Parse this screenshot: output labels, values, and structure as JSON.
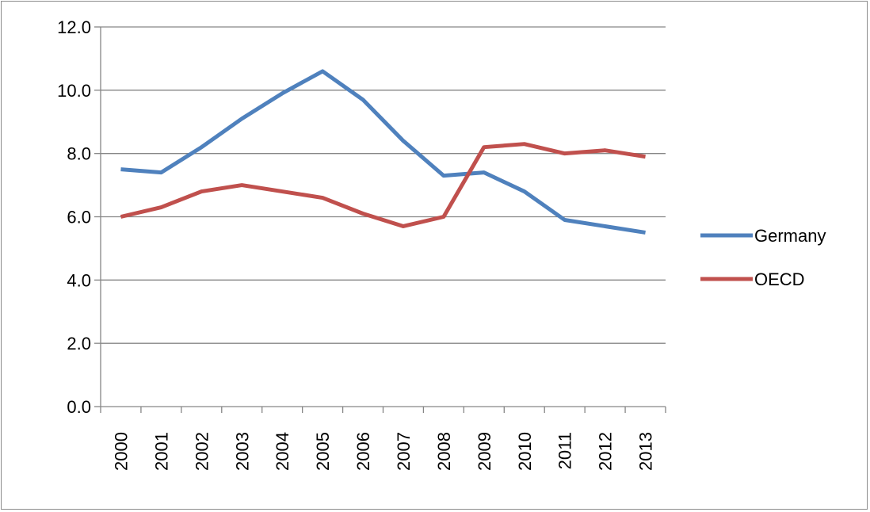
{
  "chart_data": {
    "type": "line",
    "title": "",
    "xlabel": "",
    "ylabel": "",
    "x": [
      "2000",
      "2001",
      "2002",
      "2003",
      "2004",
      "2005",
      "2006",
      "2007",
      "2008",
      "2009",
      "2010",
      "2011",
      "2012",
      "2013"
    ],
    "ylim": [
      0,
      12
    ],
    "y_ticks": [
      "0.0",
      "2.0",
      "4.0",
      "6.0",
      "8.0",
      "10.0",
      "12.0"
    ],
    "grid": true,
    "legend_position": "right",
    "series": [
      {
        "name": "Germany",
        "color": "#4f81bd",
        "values": [
          7.5,
          7.4,
          8.2,
          9.1,
          9.9,
          10.6,
          9.7,
          8.4,
          7.3,
          7.4,
          6.8,
          5.9,
          5.7,
          5.5
        ]
      },
      {
        "name": "OECD",
        "color": "#c0504d",
        "values": [
          6.0,
          6.3,
          6.8,
          7.0,
          6.8,
          6.6,
          6.1,
          5.7,
          6.0,
          8.2,
          8.3,
          8.0,
          8.1,
          7.9
        ]
      }
    ]
  }
}
